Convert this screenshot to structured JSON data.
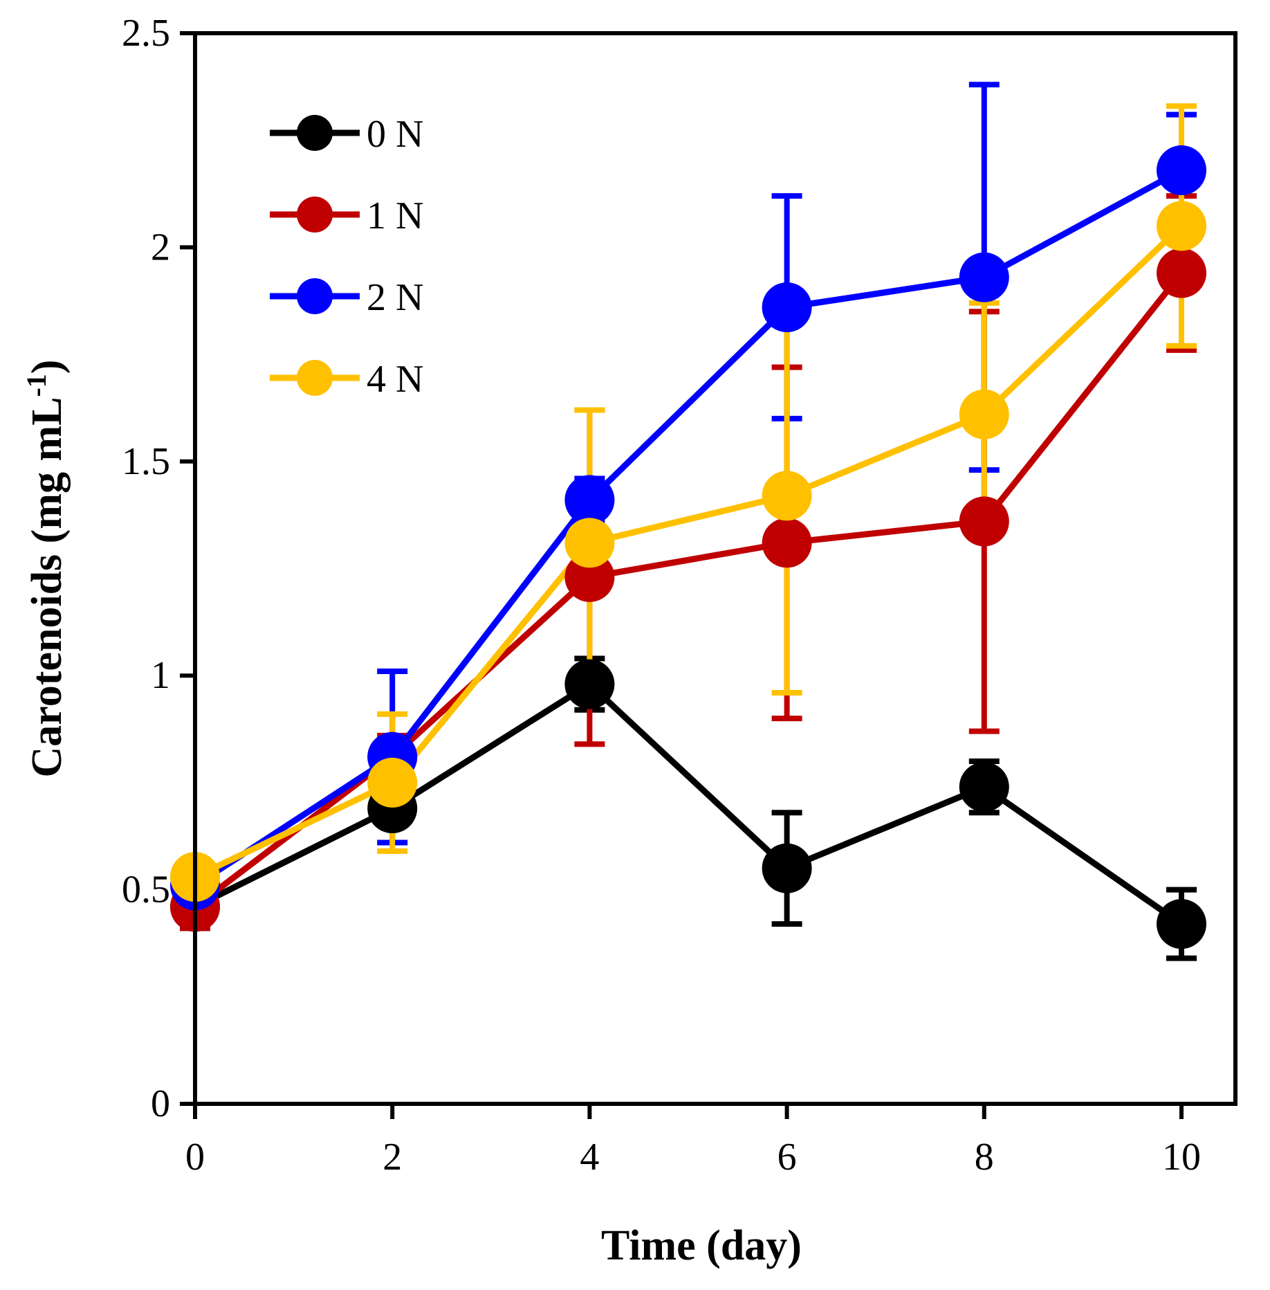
{
  "chart_data": {
    "type": "line",
    "title": "",
    "xlabel": "Time (day)",
    "ylabel_main": "Carotenoids (mg mL",
    "ylabel_sup": "-1",
    "ylabel_close": ")",
    "xlim": [
      0,
      10.5
    ],
    "ylim": [
      0,
      2.5
    ],
    "xticks": [
      0,
      2,
      4,
      6,
      8,
      10
    ],
    "xtick_labels": [
      "0",
      "2",
      "4",
      "6",
      "8",
      "10"
    ],
    "yticks": [
      0,
      0.5,
      1,
      1.5,
      2,
      2.5
    ],
    "ytick_labels": [
      "0",
      "0.5",
      "1",
      "1.5",
      "2",
      "2.5"
    ],
    "legend_position": "top-left",
    "x": [
      0,
      2,
      4,
      6,
      8,
      10
    ],
    "series": [
      {
        "name": "0 N",
        "color": "#000000",
        "values": [
          0.46,
          0.69,
          0.98,
          0.55,
          0.74,
          0.42
        ],
        "errors": [
          0.05,
          0.03,
          0.06,
          0.13,
          0.06,
          0.08
        ]
      },
      {
        "name": "1 N",
        "color": "#c00000",
        "values": [
          0.46,
          0.81,
          1.23,
          1.31,
          1.36,
          1.94
        ],
        "errors": [
          0.05,
          0.05,
          0.39,
          0.41,
          0.49,
          0.18
        ]
      },
      {
        "name": "2 N",
        "color": "#0000ff",
        "values": [
          0.51,
          0.81,
          1.41,
          1.86,
          1.93,
          2.18
        ],
        "errors": [
          0.04,
          0.2,
          0.05,
          0.26,
          0.45,
          0.13
        ]
      },
      {
        "name": "4 N",
        "color": "#ffc000",
        "values": [
          0.53,
          0.75,
          1.31,
          1.42,
          1.61,
          2.05
        ],
        "errors": [
          0.04,
          0.16,
          0.31,
          0.46,
          0.26,
          0.28
        ]
      }
    ]
  }
}
